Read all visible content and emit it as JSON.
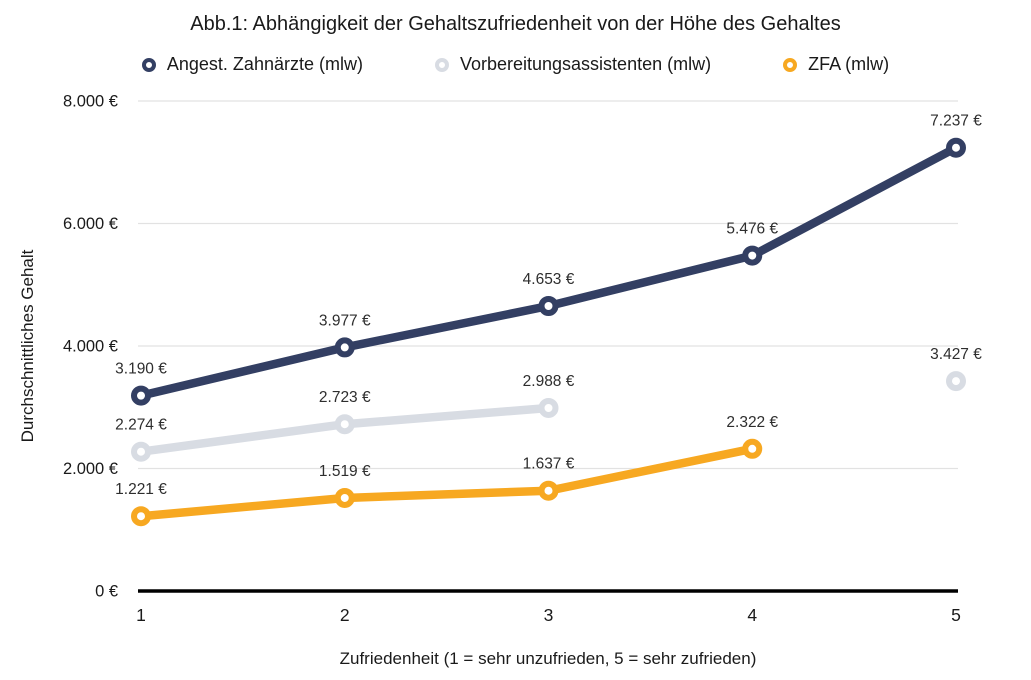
{
  "style": {
    "background": "#ffffff",
    "title_color": "#1a1a1a",
    "tick_color": "#1a1a1a",
    "data_label_color": "#2e2e2e",
    "grid_color": "#e2e2e2",
    "axis_color": "#000000"
  },
  "chart_data": {
    "type": "line",
    "title": "Abb.1: Abhängigkeit der Gehaltszufriedenheit von der Höhe des Gehaltes",
    "xlabel": "Zufriedenheit (1 = sehr unzufrieden, 5 = sehr zufrieden)",
    "ylabel": "Durchschnittliches Gehalt",
    "x": [
      1,
      2,
      3,
      4,
      5
    ],
    "xtick_labels": [
      "1",
      "2",
      "3",
      "4",
      "5"
    ],
    "xlim": [
      1,
      5
    ],
    "ylim": [
      0,
      8000
    ],
    "yticks": [
      0,
      2000,
      4000,
      6000,
      8000
    ],
    "ytick_labels": [
      "0 €",
      "2.000 €",
      "4.000 €",
      "6.000 €",
      "8.000 €"
    ],
    "grid": true,
    "legend_position": "top",
    "series": [
      {
        "name": "Angest. Zahnärzte (mlw)",
        "color": "#333f63",
        "values": [
          3190,
          3977,
          4653,
          5476,
          7237
        ],
        "labels": [
          "3.190 €",
          "3.977 €",
          "4.653 €",
          "5.476 €",
          "7.237 €"
        ]
      },
      {
        "name": "Vorbereitungsassistenten (mlw)",
        "color": "#d8dce3",
        "values": [
          2274,
          2723,
          2988,
          null,
          3427
        ],
        "labels": [
          "2.274 €",
          "2.723 €",
          "2.988 €",
          null,
          "3.427 €"
        ]
      },
      {
        "name": "ZFA (mlw)",
        "color": "#f7a821",
        "values": [
          1221,
          1519,
          1637,
          2322,
          null
        ],
        "labels": [
          "1.221 €",
          "1.519 €",
          "1.637 €",
          "2.322 €",
          null
        ]
      }
    ]
  }
}
